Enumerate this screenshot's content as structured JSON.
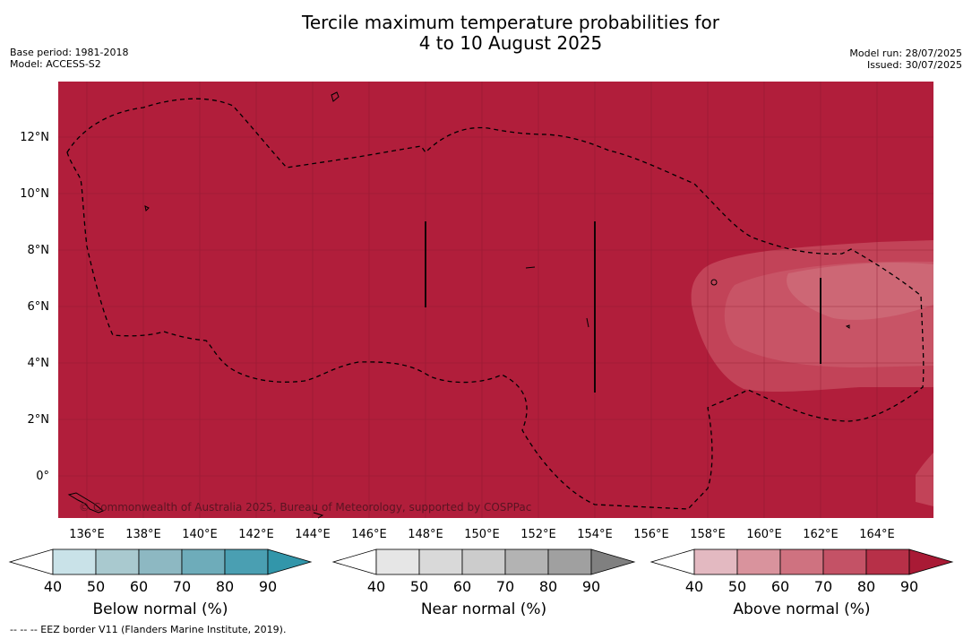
{
  "title_line1": "Tercile maximum temperature probabilities for",
  "title_line2": "4 to 10 August 2025",
  "base_period": "Base period: 1981-2018",
  "model": "Model: ACCESS-S2",
  "model_run": "Model run: 28/07/2025",
  "issued": "Issued: 30/07/2025",
  "copyright": "© Commonwealth of Australia 2025, Bureau of Meteorology, supported by COSPPac",
  "footnote": "--  --  -- EEZ border V11 (Flanders Marine Institute, 2019).",
  "map": {
    "lat_labels": [
      "12°N",
      "10°N",
      "8°N",
      "6°N",
      "4°N",
      "2°N",
      "0°"
    ],
    "lon_labels": [
      "136°E",
      "138°E",
      "140°E",
      "142°E",
      "144°E",
      "146°E",
      "148°E",
      "150°E",
      "152°E",
      "154°E",
      "156°E",
      "158°E",
      "160°E",
      "162°E",
      "164°E"
    ],
    "background_color": "#b11e3b"
  },
  "legends": [
    {
      "label": "Below normal (%)",
      "ticks": [
        "40",
        "50",
        "60",
        "70",
        "80",
        "90"
      ],
      "colors": [
        "#ffffff",
        "#c9e2e8",
        "#a9c9cf",
        "#8db8c2",
        "#6eacba",
        "#4a9fb2",
        "#3296aa"
      ]
    },
    {
      "label": "Near normal (%)",
      "ticks": [
        "40",
        "50",
        "60",
        "70",
        "80",
        "90"
      ],
      "colors": [
        "#ffffff",
        "#e6e6e6",
        "#d9d9d9",
        "#cccccc",
        "#b3b3b3",
        "#a0a0a0",
        "#808080"
      ]
    },
    {
      "label": "Above normal (%)",
      "ticks": [
        "40",
        "50",
        "60",
        "70",
        "80",
        "90"
      ],
      "colors": [
        "#ffffff",
        "#e3b9c1",
        "#d9939d",
        "#cf7280",
        "#c45266",
        "#b73048",
        "#a91a35"
      ]
    }
  ]
}
